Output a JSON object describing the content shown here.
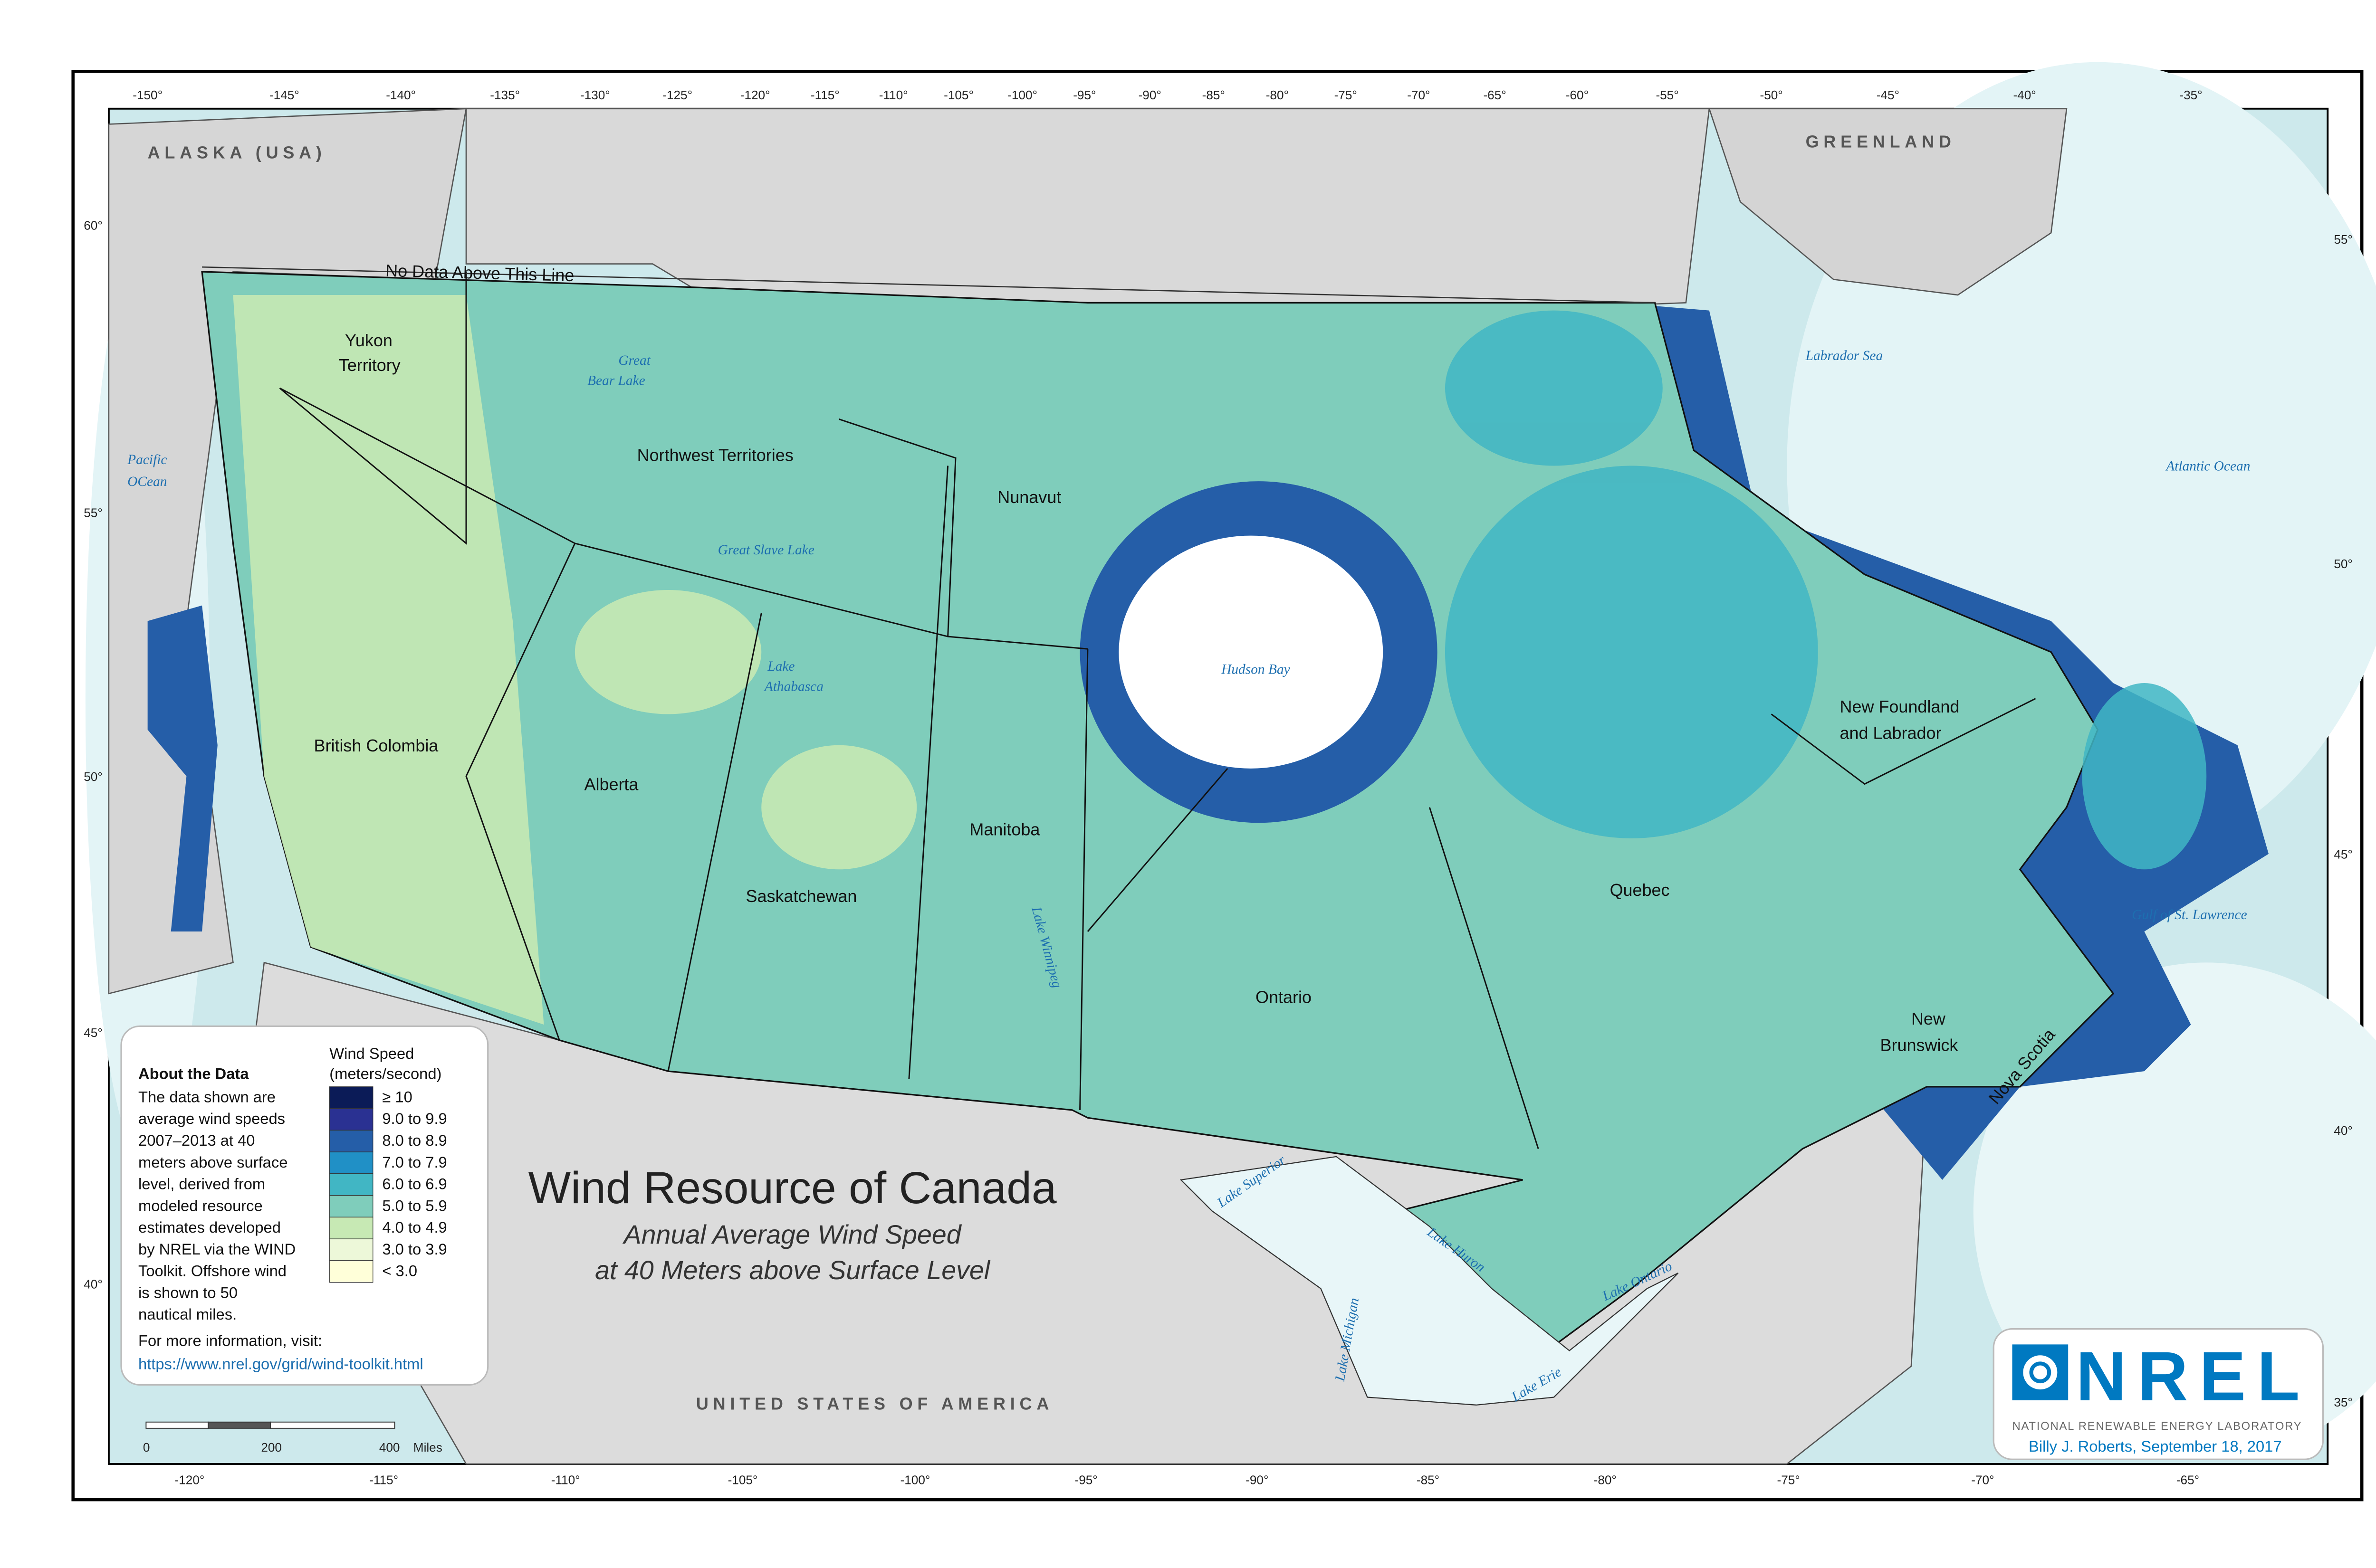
{
  "title": "Wind Resource of Canada",
  "subtitle_1": "Annual Average Wind Speed",
  "subtitle_2": "at 40 Meters above Surface Level",
  "no_data_note": "No Data Above This Line",
  "countries": {
    "alaska": "ALASKA (USA)",
    "greenland": "GREENLAND",
    "usa": "UNITED STATES OF AMERICA"
  },
  "provinces": {
    "yukon_1": "Yukon",
    "yukon_2": "Territory",
    "nwt": "Northwest Territories",
    "nunavut": "Nunavut",
    "bc": "British Colombia",
    "alberta": "Alberta",
    "sask": "Saskatchewan",
    "manitoba": "Manitoba",
    "ontario": "Ontario",
    "quebec": "Quebec",
    "nl_1": "New Foundland",
    "nl_2": "and Labrador",
    "nb_1": "New",
    "nb_2": "Brunswick",
    "ns": "Nova Scotia"
  },
  "water": {
    "pacific_1": "Pacific",
    "pacific_2": "OCean",
    "labrador": "Labrador Sea",
    "atlantic": "Atlantic Ocean",
    "gulf": "Gulf of St. Lawrence",
    "hudson": "Hudson Bay",
    "great_bear_1": "Great",
    "great_bear_2": "Bear Lake",
    "great_slave": "Great Slave Lake",
    "athabasca_1": "Lake",
    "athabasca_2": "Athabasca",
    "winnipeg": "Lake Winnipeg",
    "superior": "Lake Superior",
    "michigan": "Lake Michigan",
    "huron": "Lake Huron",
    "erie": "Lake Erie",
    "ontario": "Lake Ontario"
  },
  "top_ticks": [
    "-150°",
    "-145°",
    "-140°",
    "-135°",
    "-130°",
    "-125°",
    "-120°",
    "-115°",
    "-110°",
    "-105°",
    "-100°",
    "-95°",
    "-90°",
    "-85°",
    "-80°",
    "-75°",
    "-70°",
    "-65°",
    "-60°",
    "-55°",
    "-50°",
    "-45°",
    "-40°",
    "-35°"
  ],
  "bottom_ticks": [
    "-120°",
    "-115°",
    "-110°",
    "-105°",
    "-100°",
    "-95°",
    "-90°",
    "-85°",
    "-80°",
    "-75°",
    "-70°",
    "-65°"
  ],
  "left_ticks": [
    "60°",
    "55°",
    "50°",
    "45°",
    "40°"
  ],
  "right_ticks": [
    "55°",
    "50°",
    "45°",
    "40°",
    "35°"
  ],
  "about": {
    "heading": "About the Data",
    "lines": [
      "The data shown are",
      "average wind speeds",
      "2007–2013 at 40",
      "meters above surface",
      "level, derived from",
      "modeled resource",
      "estimates developed",
      "by NREL via the WIND",
      "Toolkit. Offshore wind",
      "is shown to 50",
      "nautical miles."
    ],
    "more_info": "For more information, visit:",
    "url": "https://www.nrel.gov/grid/wind-toolkit.html"
  },
  "legend": {
    "title_1": "Wind Speed",
    "title_2": "(meters/second)",
    "classes": [
      {
        "label": "≥ 10",
        "color": "#0b1b57"
      },
      {
        "label": "9.0 to 9.9",
        "color": "#2a3192"
      },
      {
        "label": "8.0 to 8.9",
        "color": "#255ea8"
      },
      {
        "label": "7.0 to 7.9",
        "color": "#2090c6"
      },
      {
        "label": "6.0 to 6.9",
        "color": "#41b6c4"
      },
      {
        "label": "5.0 to 5.9",
        "color": "#7fcdbb"
      },
      {
        "label": "4.0 to 4.9",
        "color": "#c7e9b4"
      },
      {
        "label": "3.0 to 3.9",
        "color": "#edf8d9"
      },
      {
        "label": "< 3.0",
        "color": "#ffffd9"
      }
    ]
  },
  "scale_bar": {
    "labels": [
      "0",
      "200",
      "400"
    ],
    "unit": "Miles"
  },
  "logo": {
    "name": "NREL",
    "full_name": "NATIONAL RENEWABLE ENERGY LABORATORY",
    "credit": "Billy J. Roberts,  September 18, 2017",
    "color": "#0079c1"
  }
}
